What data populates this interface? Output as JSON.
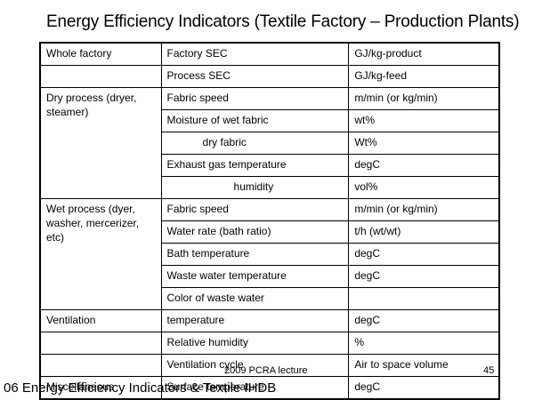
{
  "title": "Energy Efficiency Indicators (Textile Factory – Production Plants)",
  "rows": [
    {
      "group": "Whole factory",
      "indicator": "Factory SEC",
      "unit": "GJ/kg-product"
    },
    {
      "group": "",
      "indicator": "Process SEC",
      "unit": "GJ/kg-feed"
    },
    {
      "group": "Dry process (dryer, steamer)",
      "indicator": "Fabric speed",
      "unit": "m/min (or kg/min)"
    },
    {
      "group": "",
      "indicator": "Moisture of wet fabric",
      "unit": "wt%"
    },
    {
      "group": "",
      "indicator": "dry fabric",
      "unit": "Wt%"
    },
    {
      "group": "",
      "indicator": "Exhaust gas temperature",
      "unit": "degC"
    },
    {
      "group": "",
      "indicator": "humidity",
      "unit": "vol%"
    },
    {
      "group": "Wet process (dyer, washer, mercerizer, etc)",
      "indicator": "Fabric speed",
      "unit": "m/min (or kg/min)"
    },
    {
      "group": "",
      "indicator": "Water rate (bath ratio)",
      "unit": "t/h (wt/wt)"
    },
    {
      "group": "",
      "indicator": "Bath temperature",
      "unit": "degC"
    },
    {
      "group": "",
      "indicator": "Waste water temperature",
      "unit": "degC"
    },
    {
      "group": "",
      "indicator": "Color of waste water",
      "unit": ""
    },
    {
      "group": "Ventilation",
      "indicator": "temperature",
      "unit": "degC"
    },
    {
      "group": "",
      "indicator": "Relative humidity",
      "unit": "%"
    },
    {
      "group": "",
      "indicator": "Ventilation cycle",
      "unit": "Air to space volume"
    },
    {
      "group": "Miscellaneous",
      "indicator": "Surface temperature",
      "unit": "degC"
    }
  ],
  "footer": {
    "center": "2009 PCRA lecture",
    "page": "45",
    "caption": "06 Energy Efficiency Indicators & Textile IHDB"
  }
}
